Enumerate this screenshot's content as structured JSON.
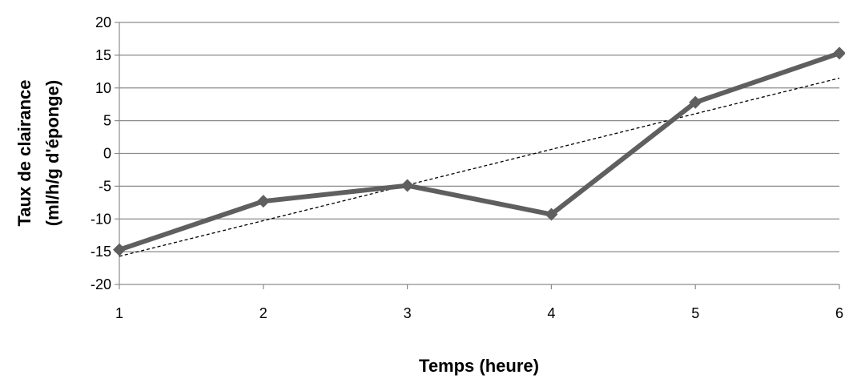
{
  "chart_data": {
    "type": "line",
    "title": "",
    "xlabel": "Temps (heure)",
    "ylabel_line1": "Taux de clairance",
    "ylabel_line2": "(ml/h/g d'éponge)",
    "x": [
      1,
      2,
      3,
      4,
      5,
      6
    ],
    "x_tick_labels": [
      "1",
      "2",
      "3",
      "4",
      "5",
      "6"
    ],
    "ylim": [
      -20,
      20
    ],
    "y_ticks": [
      20,
      15,
      10,
      5,
      0,
      -5,
      -10,
      -15,
      -20
    ],
    "y_tick_labels": [
      "20",
      "15",
      "10",
      "5",
      "0",
      "-5",
      "-10",
      "-15",
      "-20"
    ],
    "grid": "horizontal",
    "series": [
      {
        "values": [
          -14.7,
          -7.3,
          -4.9,
          -9.3,
          7.8,
          15.3
        ],
        "color": "#5f5f5f",
        "marker": "diamond"
      }
    ],
    "trendline": {
      "style": "dashed",
      "type": "linear",
      "color": "#000000",
      "start": [
        1,
        -15.7
      ],
      "end": [
        6,
        11.5
      ]
    }
  }
}
